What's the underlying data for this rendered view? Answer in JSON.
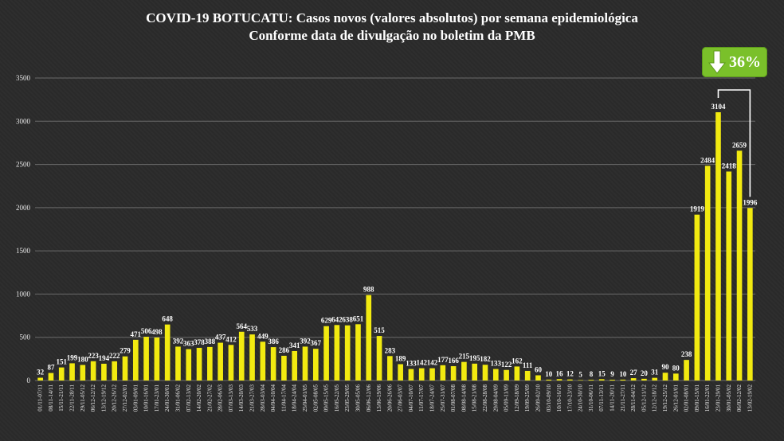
{
  "chart_data": {
    "type": "bar",
    "title": "COVID-19 BOTUCATU: Casos novos (valores absolutos) por semana epidemiológica",
    "subtitle": "Conforme data de divulgação no boletim da PMB",
    "ylim": [
      0,
      3500
    ],
    "yticks": [
      0,
      500,
      1000,
      1500,
      2000,
      2500,
      3000,
      3500
    ],
    "grid": true,
    "categories": [
      "01/11-07/11",
      "08/11-14/11",
      "15/11-21/11",
      "22/11-28/11",
      "29/11-05/12",
      "06/12-12/12",
      "13/12-19/12",
      "20/12-26/12",
      "27/12-02/01",
      "03/01-09/01",
      "10/01-16/01",
      "17/01-23/01",
      "24/01-30/01",
      "31/01-06/02",
      "07/02-13/02",
      "14/02-20/02",
      "21/02-27/02",
      "28/02-06/03",
      "07/03-13/03",
      "14/03-20/03",
      "21/03-27/03",
      "28/03-03/04",
      "04/04-10/04",
      "11/04-17/04",
      "18/04-24/04",
      "25/04-01/05",
      "02/05-08/05",
      "09/05-15/05",
      "16/05-22/05",
      "23/05-29/05",
      "30/05-05/06",
      "06/06-12/06",
      "13/06-19/06",
      "20/06-26/06",
      "27/06-03/07",
      "04/07-10/07",
      "11/07-17/07",
      "18/07-24/07",
      "25/07-31/07",
      "01/08-07/08",
      "08/08-14/08",
      "15/08-21/08",
      "22/08-28/08",
      "29/08-04/09",
      "05/09-11/09",
      "12/09-18/09",
      "19/09-25/09",
      "26/09-02/10",
      "03/10-09/10",
      "10/10-16/10",
      "17/10-23/10",
      "24/10-30/10",
      "31/10-06/11",
      "07/11-13/11",
      "14/11-20/11",
      "21/11-27/11",
      "28/11-04/12",
      "05/12-11/12",
      "12/12-18/12",
      "19/12-25/12",
      "26/12-01/01",
      "02/01-08/01",
      "09/01-15/01",
      "16/01-22/01",
      "23/01-29/01",
      "30/01-05/02",
      "06/02-12/02",
      "13/02-19/02"
    ],
    "values": [
      32,
      87,
      151,
      199,
      180,
      223,
      194,
      222,
      279,
      471,
      506,
      498,
      648,
      392,
      363,
      378,
      388,
      437,
      412,
      564,
      533,
      449,
      386,
      286,
      341,
      392,
      367,
      629,
      642,
      638,
      651,
      988,
      515,
      283,
      189,
      133,
      142,
      142,
      177,
      166,
      215,
      195,
      182,
      133,
      122,
      162,
      111,
      60,
      10,
      16,
      12,
      5,
      8,
      15,
      9,
      10,
      27,
      20,
      31,
      90,
      80,
      238,
      1919,
      2484,
      3104,
      2418,
      2659,
      1996
    ],
    "labels": [
      "32",
      "87",
      "151",
      "199",
      "180",
      "223",
      "194",
      "222",
      "279",
      "471",
      "506",
      "498",
      "648",
      "392",
      "363",
      "378",
      "388",
      "437",
      "412",
      "564",
      "533",
      "449",
      "386",
      "286",
      "341",
      "392",
      "367",
      "629",
      "642",
      "638",
      "651",
      "988",
      "515",
      "283",
      "189",
      "133",
      "142",
      "142",
      "177",
      "166",
      "215",
      "195",
      "182",
      "133",
      "122",
      "162",
      "111",
      "60",
      "10",
      "16",
      "12",
      "5",
      "8",
      "15",
      "9",
      "10",
      "27",
      "20",
      "31",
      "90",
      "80",
      "238",
      "1919",
      "2484",
      "3104",
      "2418",
      "2659",
      "1996"
    ],
    "bar_color": "#f2ea10",
    "annotation": "36%"
  },
  "colors": {
    "background": "#2b2b2b",
    "bar": "#f2ea10",
    "badge": "#7ac02a",
    "text": "#ffffff"
  },
  "badge": {
    "text": "36%",
    "icon": "down-arrow-icon"
  }
}
